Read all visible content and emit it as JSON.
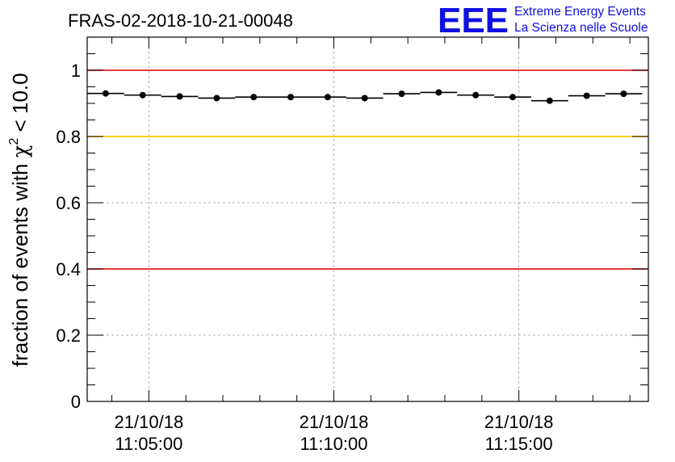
{
  "header": {
    "title": "FRAS-02-2018-10-21-00048",
    "logo": {
      "mark": "EEE",
      "line1": "Extreme Energy Events",
      "line2": "La Scienza nelle Scuole",
      "color": "#1010e0"
    }
  },
  "chart_data": {
    "type": "scatter",
    "title": "FRAS-02-2018-10-21-00048",
    "xlabel": "",
    "ylabel": "fraction of events with",
    "ylabel_chi": "χ",
    "ylabel_exp": "2",
    "ylabel_tail": "< 10.0",
    "ylim": [
      0,
      1.1
    ],
    "yticks": [
      {
        "value": 0,
        "label": "0"
      },
      {
        "value": 0.2,
        "label": "0.2"
      },
      {
        "value": 0.4,
        "label": "0.4"
      },
      {
        "value": 0.6,
        "label": "0.6"
      },
      {
        "value": 0.8,
        "label": "0.8"
      },
      {
        "value": 1,
        "label": "1"
      }
    ],
    "xlim": [
      "21/10/18 11:03:20",
      "21/10/18 11:18:30"
    ],
    "xticks": [
      {
        "value": "21/10/18 11:05:00",
        "label_date": "21/10/18",
        "label_time": "11:05:00"
      },
      {
        "value": "21/10/18 11:10:00",
        "label_date": "21/10/18",
        "label_time": "11:10:00"
      },
      {
        "value": "21/10/18 11:15:00",
        "label_date": "21/10/18",
        "label_time": "11:15:00"
      }
    ],
    "grid": true,
    "bin_width_seconds": 60,
    "series": [
      {
        "color": "#000000",
        "points": [
          {
            "x": "21/10/18 11:03:50",
            "y": 0.93
          },
          {
            "x": "21/10/18 11:04:50",
            "y": 0.925
          },
          {
            "x": "21/10/18 11:05:50",
            "y": 0.921
          },
          {
            "x": "21/10/18 11:06:50",
            "y": 0.916
          },
          {
            "x": "21/10/18 11:07:50",
            "y": 0.919
          },
          {
            "x": "21/10/18 11:08:50",
            "y": 0.919
          },
          {
            "x": "21/10/18 11:09:50",
            "y": 0.919
          },
          {
            "x": "21/10/18 11:10:50",
            "y": 0.916
          },
          {
            "x": "21/10/18 11:11:50",
            "y": 0.929
          },
          {
            "x": "21/10/18 11:12:50",
            "y": 0.933
          },
          {
            "x": "21/10/18 11:13:50",
            "y": 0.925
          },
          {
            "x": "21/10/18 11:14:50",
            "y": 0.919
          },
          {
            "x": "21/10/18 11:15:50",
            "y": 0.908
          },
          {
            "x": "21/10/18 11:16:50",
            "y": 0.923
          },
          {
            "x": "21/10/18 11:17:50",
            "y": 0.929
          }
        ]
      }
    ],
    "reference_lines": [
      {
        "y": 1.0,
        "color": "#e8201a"
      },
      {
        "y": 0.8,
        "color": "#ffc800"
      },
      {
        "y": 0.4,
        "color": "#e8201a"
      }
    ]
  }
}
